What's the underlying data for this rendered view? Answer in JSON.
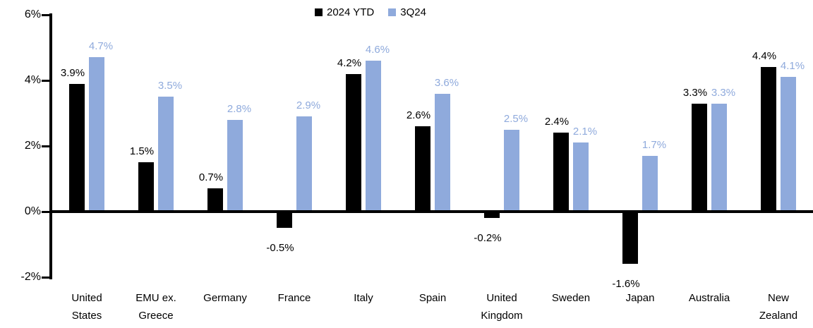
{
  "chart_data": {
    "type": "bar",
    "title": "",
    "xlabel": "",
    "ylabel": "",
    "categories": [
      "United\nStates",
      "EMU ex.\nGreece",
      "Germany",
      "France",
      "Italy",
      "Spain",
      "United\nKingdom",
      "Sweden",
      "Japan",
      "Australia",
      "New\nZealand"
    ],
    "series": [
      {
        "name": "2024 YTD",
        "color": "#000000",
        "values": [
          3.9,
          1.5,
          0.7,
          -0.5,
          4.2,
          2.6,
          -0.2,
          2.4,
          -1.6,
          3.3,
          4.4
        ]
      },
      {
        "name": "3Q24",
        "color": "#8FAADC",
        "values": [
          4.7,
          3.5,
          2.8,
          2.9,
          4.6,
          3.6,
          2.5,
          2.1,
          1.7,
          3.3,
          4.1
        ]
      }
    ],
    "value_label_format": "{v}%",
    "y_ticks": [
      "6%",
      "4%",
      "2%",
      "0%",
      "-2%"
    ],
    "y_tick_values": [
      6,
      4,
      2,
      0,
      -2
    ],
    "ylim": [
      -2,
      6
    ],
    "grid": false,
    "legend_position": "top-center"
  }
}
